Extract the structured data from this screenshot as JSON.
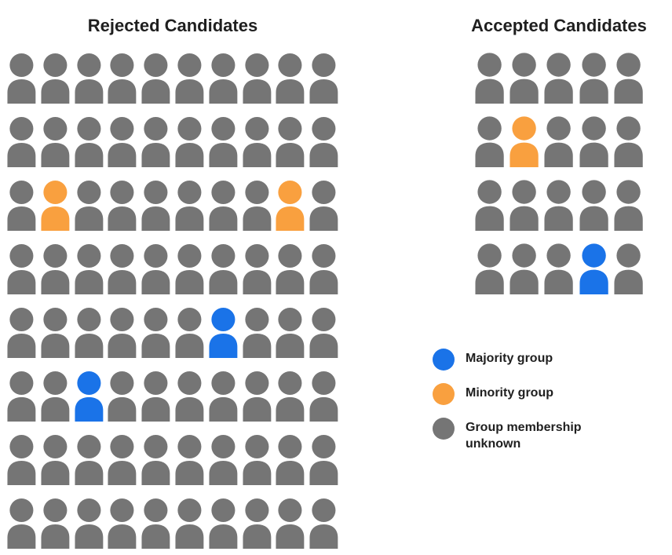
{
  "colors": {
    "majority": "#1a73e8",
    "minority": "#f9a03f",
    "unknown": "#757575"
  },
  "cell_codes": {
    "g": "unknown",
    "o": "minority",
    "b": "majority"
  },
  "rejected": {
    "title": "Rejected Candidates",
    "rows": 8,
    "cols": 10,
    "cells": [
      "gggggggggg",
      "gggggggggg",
      "goggggggog",
      "gggggggggg",
      "ggggggbggg",
      "ggbggggggg",
      "gggggggggg",
      "gggggggggg"
    ]
  },
  "accepted": {
    "title": "Accepted Candidates",
    "rows": 4,
    "cols": 5,
    "cells": [
      "ggggg",
      "goggg",
      "ggggg",
      "gggbg"
    ]
  },
  "legend": {
    "items": [
      {
        "key": "majority",
        "label": "Majority group"
      },
      {
        "key": "minority",
        "label": "Minority group"
      },
      {
        "key": "unknown",
        "label": "Group membership unknown"
      }
    ]
  },
  "chart_data": {
    "type": "pictograph",
    "charts": [
      {
        "title": "Rejected Candidates",
        "total": 80,
        "grid": {
          "rows": 8,
          "cols": 10
        },
        "counts": {
          "majority_group": 2,
          "minority_group": 2,
          "group_membership_unknown": 76
        },
        "highlighted_positions": {
          "minority_group": [
            {
              "row": 3,
              "col": 2
            },
            {
              "row": 3,
              "col": 9
            }
          ],
          "majority_group": [
            {
              "row": 5,
              "col": 7
            },
            {
              "row": 6,
              "col": 3
            }
          ]
        }
      },
      {
        "title": "Accepted Candidates",
        "total": 20,
        "grid": {
          "rows": 4,
          "cols": 5
        },
        "counts": {
          "majority_group": 1,
          "minority_group": 1,
          "group_membership_unknown": 18
        },
        "highlighted_positions": {
          "minority_group": [
            {
              "row": 2,
              "col": 2
            }
          ],
          "majority_group": [
            {
              "row": 4,
              "col": 4
            }
          ]
        }
      }
    ],
    "legend_entries": [
      "Majority group",
      "Minority group",
      "Group membership unknown"
    ],
    "legend_position": "right"
  }
}
